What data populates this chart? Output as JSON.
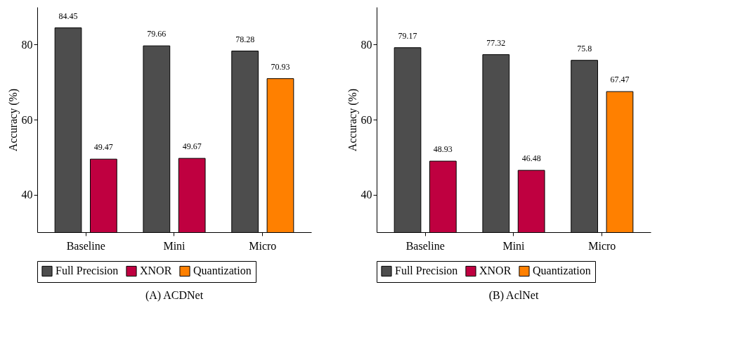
{
  "chart_data": [
    {
      "type": "bar",
      "title": "(A) ACDNet",
      "ylabel": "Accuracy (%)",
      "categories": [
        "Baseline",
        "Mini",
        "Micro"
      ],
      "ylim": [
        30,
        90
      ],
      "yticks": [
        40,
        60,
        80
      ],
      "grid": false,
      "legend": "bottom",
      "data_labels": true,
      "series": [
        {
          "name": "Full Precision",
          "color": "#4d4d4d",
          "values": [
            84.45,
            79.66,
            78.28
          ]
        },
        {
          "name": "XNOR",
          "color": "#bf0040",
          "values": [
            49.47,
            49.67,
            null
          ]
        },
        {
          "name": "Quantization",
          "color": "#ff8000",
          "values": [
            null,
            null,
            70.93
          ]
        }
      ]
    },
    {
      "type": "bar",
      "title": "(B) AclNet",
      "ylabel": "Accuracy (%)",
      "categories": [
        "Baseline",
        "Mini",
        "Micro"
      ],
      "ylim": [
        30,
        90
      ],
      "yticks": [
        40,
        60,
        80
      ],
      "grid": false,
      "legend": "bottom",
      "data_labels": true,
      "series": [
        {
          "name": "Full Precision",
          "color": "#4d4d4d",
          "values": [
            79.17,
            77.32,
            75.8
          ]
        },
        {
          "name": "XNOR",
          "color": "#bf0040",
          "values": [
            48.93,
            46.48,
            null
          ]
        },
        {
          "name": "Quantization",
          "color": "#ff8000",
          "values": [
            null,
            null,
            67.47
          ]
        }
      ]
    }
  ]
}
